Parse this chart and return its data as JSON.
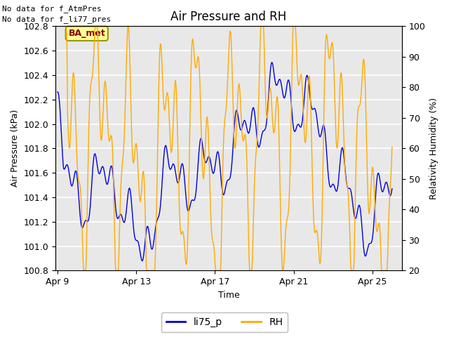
{
  "title": "Air Pressure and RH",
  "xlabel": "Time",
  "ylabel_left": "Air Pressure (kPa)",
  "ylabel_right": "Relativity Humidity (%)",
  "annotation_line1": "No data for f_AtmPres",
  "annotation_line2": "No data for f_li77_pres",
  "ba_met_label": "BA_met",
  "legend_labels": [
    "li75_p",
    "RH"
  ],
  "line_color_blue": "#0000dd",
  "line_color_orange": "#ffaa00",
  "ylim_left": [
    100.8,
    102.8
  ],
  "ylim_right": [
    20,
    100
  ],
  "yticks_left": [
    100.8,
    101.0,
    101.2,
    101.4,
    101.6,
    101.8,
    102.0,
    102.2,
    102.4,
    102.6,
    102.8
  ],
  "yticks_right": [
    20,
    30,
    40,
    50,
    60,
    70,
    80,
    90,
    100
  ],
  "xtick_labels": [
    "Apr 9",
    "Apr 13",
    "Apr 17",
    "Apr 21",
    "Apr 25"
  ],
  "xtick_positions": [
    0,
    4,
    8,
    12,
    16
  ],
  "xlim": [
    -0.1,
    17.5
  ],
  "fig_bg_color": "#ffffff",
  "plot_bg_color": "#e8e8e8",
  "grid_color": "#ffffff",
  "ba_met_bg": "#ffff99",
  "ba_met_border": "#999900",
  "ba_met_fg": "#880000",
  "title_fontsize": 12,
  "axis_label_fontsize": 9,
  "tick_fontsize": 9,
  "annot_fontsize": 8
}
